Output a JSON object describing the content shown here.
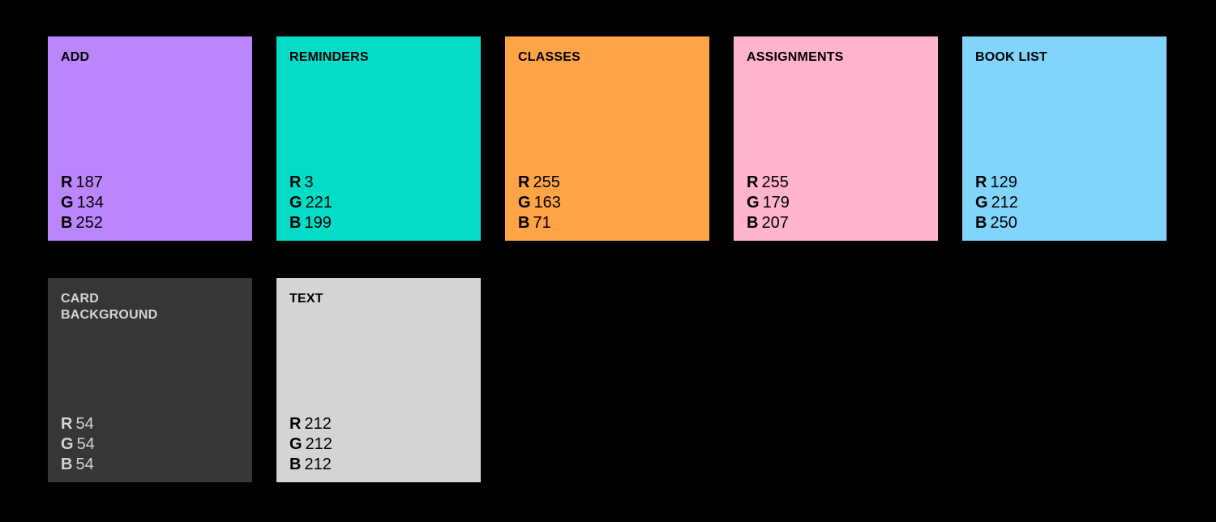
{
  "swatches": [
    {
      "name": "ADD",
      "r": "187",
      "g": "134",
      "b": "252",
      "color": "#BB86FC",
      "text_color": "#000000"
    },
    {
      "name": "REMINDERS",
      "r": "3",
      "g": "221",
      "b": "199",
      "color": "#03DDC7",
      "text_color": "#000000"
    },
    {
      "name": "CLASSES",
      "r": "255",
      "g": "163",
      "b": "71",
      "color": "#FFA347",
      "text_color": "#000000"
    },
    {
      "name": "ASSIGNMENTS",
      "r": "255",
      "g": "179",
      "b": "207",
      "color": "#FFB3CF",
      "text_color": "#000000"
    },
    {
      "name": "BOOK LIST",
      "r": "129",
      "g": "212",
      "b": "250",
      "color": "#81D4FA",
      "text_color": "#000000"
    },
    {
      "name": "CARD BACKGROUND",
      "r": "54",
      "g": "54",
      "b": "54",
      "color": "#363636",
      "text_color": "#D4D4D4"
    },
    {
      "name": "TEXT",
      "r": "212",
      "g": "212",
      "b": "212",
      "color": "#D4D4D4",
      "text_color": "#000000"
    }
  ],
  "channel_labels": {
    "r": "R",
    "g": "G",
    "b": "B"
  }
}
